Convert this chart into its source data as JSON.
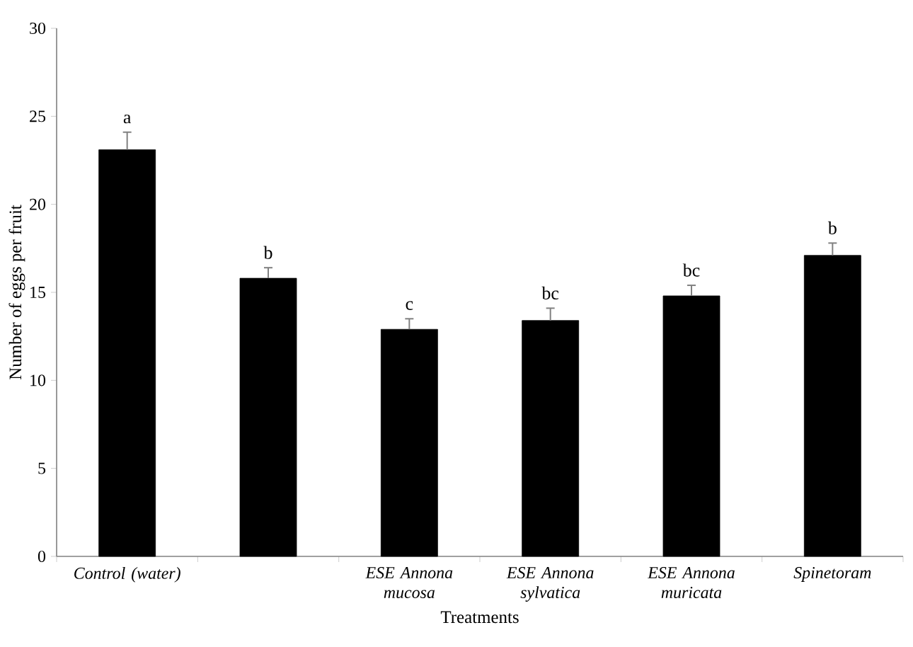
{
  "chart_data": {
    "type": "bar",
    "xlabel": "Treatments",
    "ylabel": "Number of eggs per fruit",
    "categories": [
      "*Control (water)*",
      null,
      "*ESE Annona mucosa*",
      "*ESE Annona sylvatica*",
      "*ESE Annona muricata*",
      "*Spinetoram*"
    ],
    "values": [
      23.1,
      15.8,
      12.9,
      13.4,
      14.8,
      17.1
    ],
    "errors": [
      [
        23.1,
        24.1
      ],
      [
        15.8,
        16.4
      ],
      [
        12.9,
        13.5
      ],
      [
        13.4,
        14.1
      ],
      [
        14.8,
        15.4
      ],
      [
        17.1,
        17.8
      ]
    ],
    "color": "#000000",
    "ylim": [
      0,
      30
    ],
    "yticks": [
      0,
      5,
      10,
      15,
      20,
      25,
      30
    ],
    "grid": false,
    "annotations": [
      {
        "text": "a",
        "x": "*Control (water)*",
        "y": 24.1
      },
      {
        "text": "b",
        "y": 16.4
      },
      {
        "text": "c",
        "x": "*ESE Annona mucosa*",
        "y": 13.5
      },
      {
        "text": "bc",
        "x": "*ESE Annona sylvatica*",
        "y": 14.1
      },
      {
        "text": "bc",
        "x": "*ESE Annona muricata*",
        "y": 15.4
      },
      {
        "text": "b",
        "x": "*Spinetoram*",
        "y": 17.8
      }
    ]
  }
}
